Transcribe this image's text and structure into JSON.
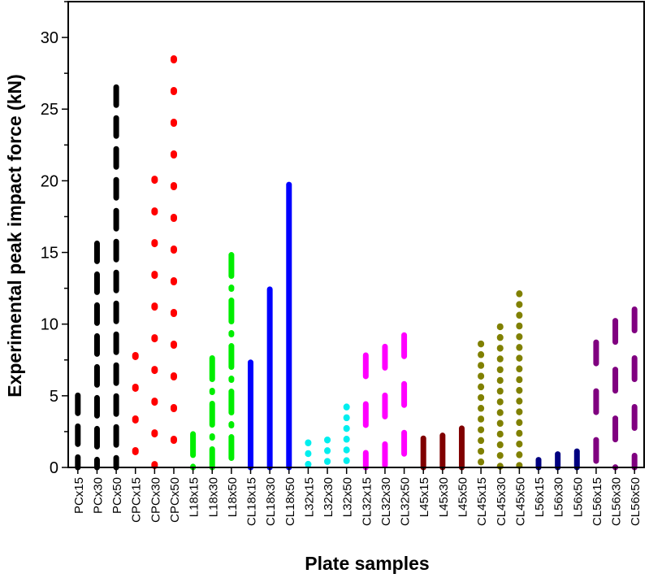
{
  "chart_data": {
    "type": "bar",
    "xlabel": "Plate samples",
    "ylabel": "Experimental peak impact force (kN)",
    "ylim": [
      0,
      32.5
    ],
    "yticks": [
      0,
      5,
      10,
      15,
      20,
      25,
      30
    ],
    "grid": false,
    "categories": [
      "PCx15",
      "PCx30",
      "PCx50",
      "CPCx15",
      "CPCx30",
      "CPCx50",
      "L18x15",
      "L18x30",
      "L18x50",
      "CL18x15",
      "CL18x30",
      "CL18x50",
      "L32x15",
      "L32x30",
      "L32x50",
      "CL32x15",
      "CL32x30",
      "CL32x50",
      "L45x15",
      "L45x30",
      "L45x50",
      "CL45x15",
      "CL45x30",
      "CL45x50",
      "L56x15",
      "L56x30",
      "L56x50",
      "CL56x15",
      "CL56x30",
      "CL56x50"
    ],
    "values": [
      5.2,
      15.8,
      26.7,
      8.0,
      20.3,
      28.7,
      2.5,
      7.8,
      15.0,
      7.5,
      12.6,
      19.9,
      1.9,
      2.1,
      4.4,
      8.0,
      8.6,
      9.4,
      2.2,
      2.4,
      2.9,
      8.8,
      10.0,
      12.3,
      0.7,
      1.1,
      1.3,
      8.9,
      10.4,
      11.2
    ],
    "groups": [
      {
        "name": "PC",
        "color": "#000000",
        "style": "dash"
      },
      {
        "name": "CPC",
        "color": "#ff0000",
        "style": "dot-sparse"
      },
      {
        "name": "L18",
        "color": "#00ee00",
        "style": "dash-dot"
      },
      {
        "name": "CL18",
        "color": "#0000ff",
        "style": "solid"
      },
      {
        "name": "L32",
        "color": "#00eeee",
        "style": "dot"
      },
      {
        "name": "CL32",
        "color": "#ff00ff",
        "style": "dash"
      },
      {
        "name": "L45",
        "color": "#800000",
        "style": "solid"
      },
      {
        "name": "CL45",
        "color": "#808000",
        "style": "dot"
      },
      {
        "name": "L56",
        "color": "#000080",
        "style": "solid"
      },
      {
        "name": "CL56",
        "color": "#800080",
        "style": "dash"
      }
    ]
  }
}
